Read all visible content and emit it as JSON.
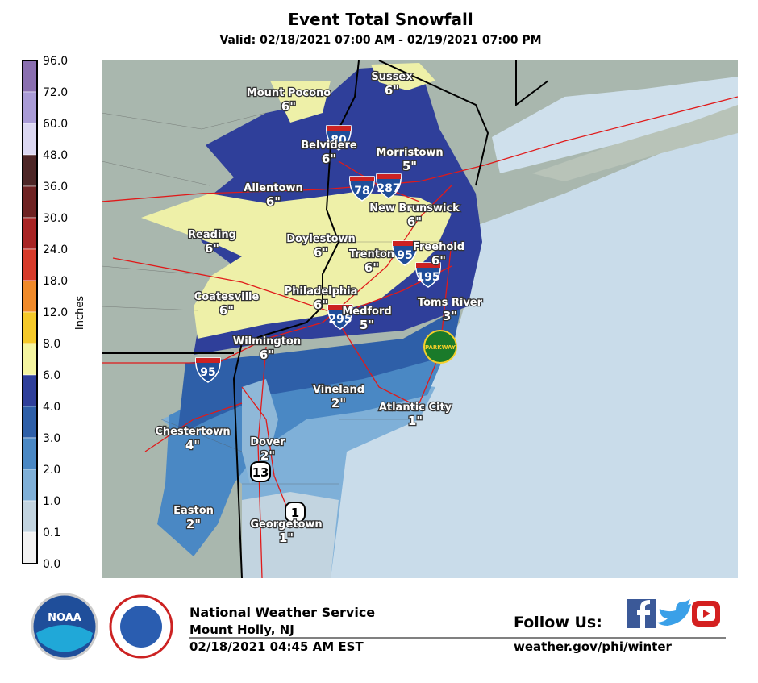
{
  "header": {
    "title": "Event Total Snowfall",
    "subtitle": "Valid: 02/18/2021 07:00 AM - 02/19/2021 07:00 PM"
  },
  "legend": {
    "unit": "Inches",
    "labels": [
      "96.0",
      "72.0",
      "60.0",
      "48.0",
      "36.0",
      "30.0",
      "24.0",
      "18.0",
      "12.0",
      "8.0",
      "6.0",
      "4.0",
      "3.0",
      "2.0",
      "1.0",
      "0.1",
      "0.0"
    ],
    "colors": [
      "#8a6fb0",
      "#a99bd6",
      "#dcd8f2",
      "#4d2626",
      "#6e2222",
      "#a82424",
      "#d63a2a",
      "#f08a2a",
      "#f5c92a",
      "#f5f5a0",
      "#2f3f9a",
      "#2e5fa8",
      "#4a88c4",
      "#7fb0d8",
      "#c2d4e0",
      "#f2f2f2"
    ]
  },
  "places": [
    {
      "name": "Mount Pocono",
      "amount": "6\""
    },
    {
      "name": "Sussex",
      "amount": "6\""
    },
    {
      "name": "Belvidere",
      "amount": "6\""
    },
    {
      "name": "Morristown",
      "amount": "5\""
    },
    {
      "name": "Allentown",
      "amount": "6\""
    },
    {
      "name": "New Brunswick",
      "amount": "6\""
    },
    {
      "name": "Reading",
      "amount": "6\""
    },
    {
      "name": "Doylestown",
      "amount": "6\""
    },
    {
      "name": "Trenton",
      "amount": "6\""
    },
    {
      "name": "Freehold",
      "amount": "6\""
    },
    {
      "name": "Coatesville",
      "amount": "6\""
    },
    {
      "name": "Philadelphia",
      "amount": "6\""
    },
    {
      "name": "Medford",
      "amount": "5\""
    },
    {
      "name": "Toms River",
      "amount": "3\""
    },
    {
      "name": "Wilmington",
      "amount": "6\""
    },
    {
      "name": "Vineland",
      "amount": "2\""
    },
    {
      "name": "Atlantic City",
      "amount": "1\""
    },
    {
      "name": "Chestertown",
      "amount": "4\""
    },
    {
      "name": "Dover",
      "amount": "2\""
    },
    {
      "name": "Easton",
      "amount": "2\""
    },
    {
      "name": "Georgetown",
      "amount": "1\""
    }
  ],
  "shields": [
    "80",
    "78",
    "287",
    "95",
    "195",
    "295",
    "95",
    "13",
    "1",
    "PARKWAY"
  ],
  "footer": {
    "logo": "NOAA",
    "org": "National Weather Service",
    "office": "Mount Holly, NJ",
    "issued": "02/18/2021 04:45 AM EST",
    "follow": "Follow Us:",
    "url": "weather.gov/phi/winter"
  }
}
